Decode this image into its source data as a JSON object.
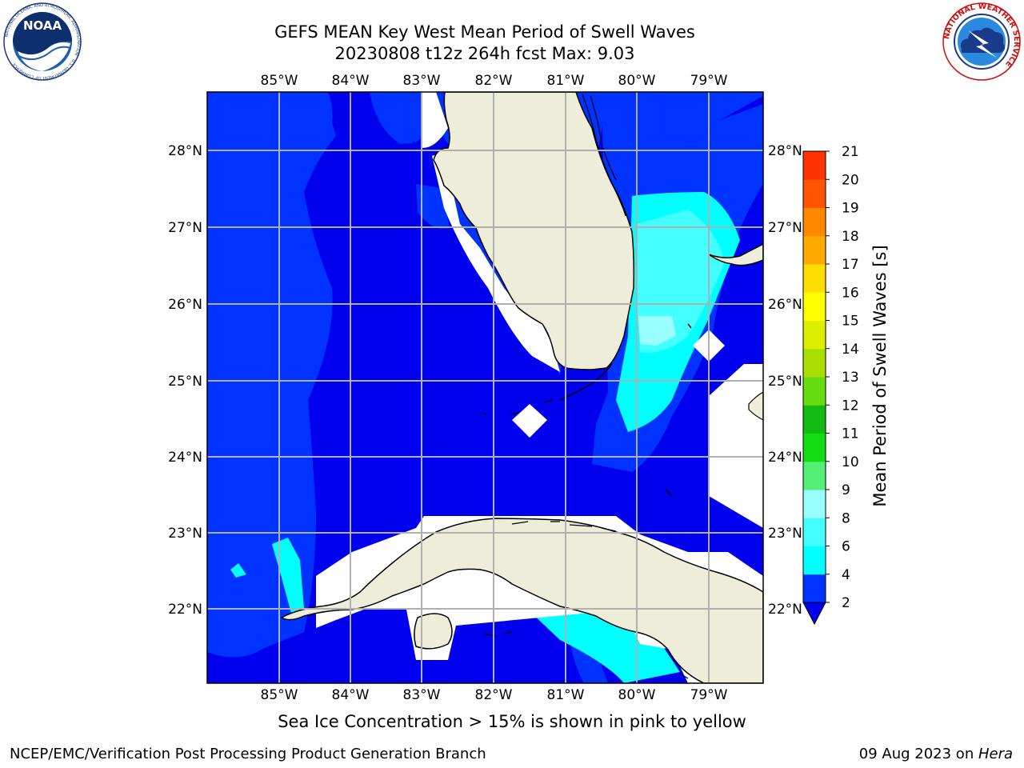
{
  "header": {
    "title_line1": "GEFS MEAN Key West Mean Period of Swell Waves",
    "title_line2": "20230808 t12z 264h fcst   Max: 9.03"
  },
  "logos": {
    "left": {
      "icon": "noaa-logo-icon",
      "text": "NOAA",
      "ring_text": "NATIONAL OCEANIC AND ATMOSPHERIC ADMINISTRATION · U.S. DEPARTMENT OF COMMERCE"
    },
    "right": {
      "icon": "nws-logo-icon",
      "ring_text": "NATIONAL WEATHER SERVICE"
    }
  },
  "map": {
    "lon_labels": [
      "85°W",
      "84°W",
      "83°W",
      "82°W",
      "81°W",
      "80°W",
      "79°W"
    ],
    "lat_labels": [
      "28°N",
      "27°N",
      "26°N",
      "25°N",
      "24°N",
      "23°N",
      "22°N"
    ],
    "colors": {
      "land": "#eeedd9",
      "no_data": "#ffffff",
      "grid": "#b0b0b0",
      "coast": "#000000"
    }
  },
  "colorbar": {
    "label": "Mean Period of Swell Waves [s]",
    "ticks": [
      "2",
      "4",
      "6",
      "8",
      "9",
      "10",
      "11",
      "12",
      "13",
      "14",
      "15",
      "16",
      "17",
      "18",
      "19",
      "20",
      "21"
    ],
    "colors": [
      "#0033ff",
      "#00ffff",
      "#44ffff",
      "#99ffff",
      "#55ee77",
      "#11dd11",
      "#11bb11",
      "#66dd11",
      "#aadd00",
      "#ddee00",
      "#ffff00",
      "#ffdd00",
      "#ffaa00",
      "#ff8800",
      "#ff5500",
      "#ff3300"
    ],
    "under_color": "#0000ee"
  },
  "note": "Sea Ice Concentration > 15% is shown in pink to yellow",
  "footer": {
    "left": "NCEP/EMC/Verification Post Processing Product Generation Branch",
    "right_date": "09 Aug 2023 on ",
    "right_host": "Hera"
  }
}
